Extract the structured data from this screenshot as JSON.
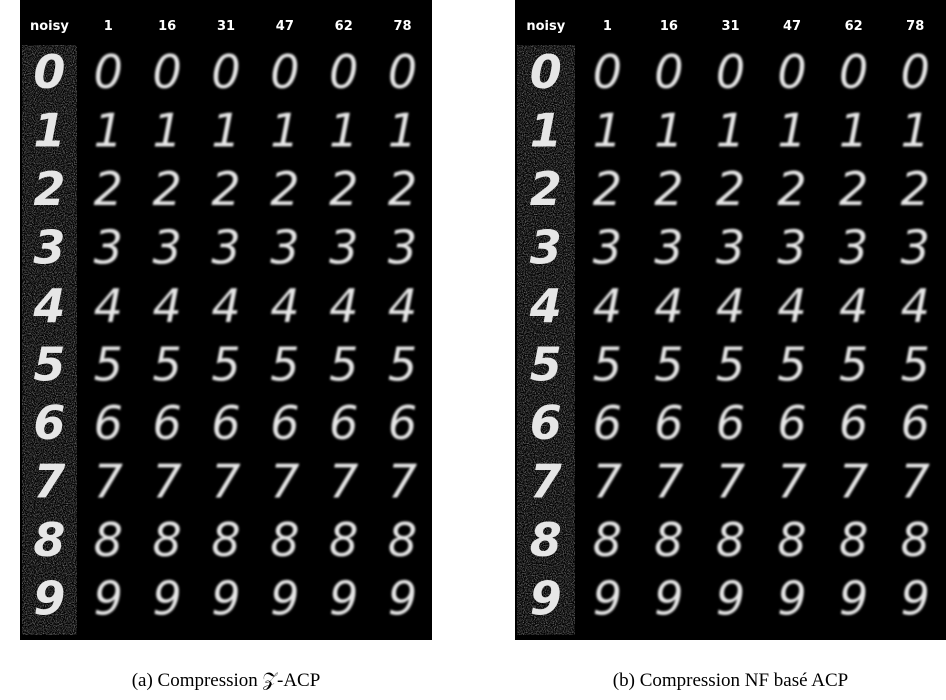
{
  "digits": [
    "0",
    "1",
    "2",
    "3",
    "4",
    "5",
    "6",
    "7",
    "8",
    "9"
  ],
  "panels": [
    {
      "columns": [
        "noisy",
        "1",
        "16",
        "31",
        "47",
        "62",
        "78"
      ],
      "caption": "(a) Compression 𝒵-ACP"
    },
    {
      "columns": [
        "noisy",
        "1",
        "16",
        "31",
        "47",
        "62",
        "78"
      ],
      "caption": "(b) Compression NF basé ACP"
    }
  ]
}
